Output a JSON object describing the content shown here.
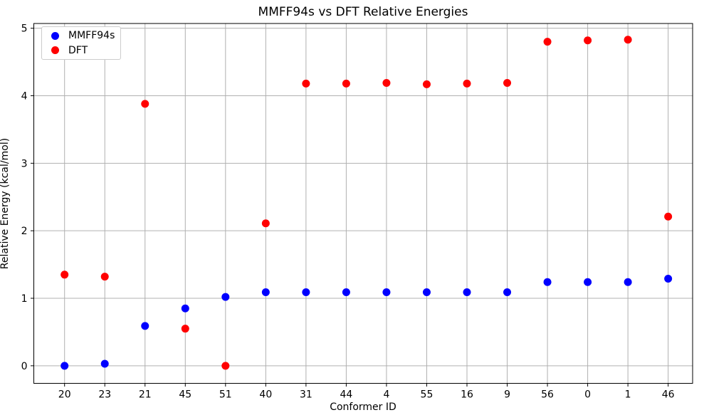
{
  "chart_data": {
    "type": "scatter",
    "title": "MMFF94s vs DFT Relative Energies",
    "xlabel": "Conformer ID",
    "ylabel": "Relative Energy (kcal/mol)",
    "categories": [
      "20",
      "23",
      "21",
      "45",
      "51",
      "40",
      "31",
      "44",
      "4",
      "55",
      "16",
      "9",
      "56",
      "0",
      "1",
      "46"
    ],
    "series": [
      {
        "name": "MMFF94s",
        "color": "#0000ff",
        "values": [
          0.0,
          0.03,
          0.59,
          0.85,
          1.02,
          1.09,
          1.09,
          1.09,
          1.09,
          1.09,
          1.09,
          1.09,
          1.24,
          1.24,
          1.24,
          1.29
        ]
      },
      {
        "name": "DFT",
        "color": "#ff0000",
        "values": [
          1.35,
          1.32,
          3.88,
          0.55,
          0.0,
          2.11,
          4.18,
          4.18,
          4.19,
          4.17,
          4.18,
          4.19,
          4.8,
          4.82,
          4.83,
          2.21
        ]
      }
    ],
    "y_ticks": [
      "0",
      "1",
      "2",
      "3",
      "4",
      "5"
    ],
    "ylim": [
      -0.26,
      5.07
    ],
    "grid": true,
    "grid_color": "#b0b0b0",
    "legend_position": "upper left"
  }
}
